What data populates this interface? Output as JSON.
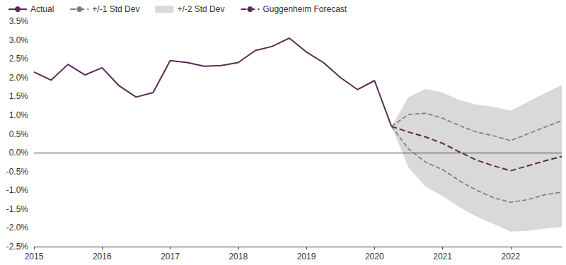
{
  "chart_data": {
    "type": "line",
    "x": [
      2015,
      2015.25,
      2015.5,
      2015.75,
      2016,
      2016.25,
      2016.5,
      2016.75,
      2017,
      2017.25,
      2017.5,
      2017.75,
      2018,
      2018.25,
      2018.5,
      2018.75,
      2019,
      2019.25,
      2019.5,
      2019.75,
      2020,
      2020.25,
      2020.5,
      2020.75,
      2021,
      2021.25,
      2021.5,
      2021.75,
      2022,
      2022.25,
      2022.5,
      2022.75
    ],
    "xlim": [
      2015,
      2022.75
    ],
    "xticks": [
      2015,
      2016,
      2017,
      2018,
      2019,
      2020,
      2021,
      2022
    ],
    "ylim": [
      -2.5,
      3.5
    ],
    "yticks": [
      {
        "value": -2.5,
        "label": "-2.5%"
      },
      {
        "value": -2.0,
        "label": "-2.0%"
      },
      {
        "value": -1.5,
        "label": "-1.5%"
      },
      {
        "value": -1.0,
        "label": "-1.0%"
      },
      {
        "value": -0.5,
        "label": "-0.5%"
      },
      {
        "value": 0,
        "label": "0.0%"
      },
      {
        "value": 0.5,
        "label": "0.5%"
      },
      {
        "value": 1.0,
        "label": "1.0%"
      },
      {
        "value": 1.5,
        "label": "1.5%"
      },
      {
        "value": 2.0,
        "label": "2.0%"
      },
      {
        "value": 2.5,
        "label": "2.5%"
      },
      {
        "value": 3.0,
        "label": "3.0%"
      },
      {
        "value": 3.5,
        "label": "3.5%"
      }
    ],
    "grid": false,
    "legend": "top-left",
    "series": [
      {
        "name": "Actual",
        "type": "line",
        "color": "#5a2a55",
        "line_style": "solid",
        "values": [
          2.15,
          1.93,
          2.35,
          2.07,
          2.26,
          1.78,
          1.48,
          1.6,
          2.45,
          2.4,
          2.3,
          2.32,
          2.4,
          2.72,
          2.83,
          3.05,
          2.68,
          2.4,
          2.0,
          1.68,
          1.92,
          0.7,
          null,
          null,
          null,
          null,
          null,
          null,
          null,
          null,
          null,
          null
        ]
      },
      {
        "name": "+/-1 Std Dev",
        "type": "line",
        "color": "#7a7a7a",
        "line_style": "dashed",
        "upper": [
          null,
          null,
          null,
          null,
          null,
          null,
          null,
          null,
          null,
          null,
          null,
          null,
          null,
          null,
          null,
          null,
          null,
          null,
          null,
          null,
          null,
          0.7,
          1.02,
          1.05,
          0.92,
          0.72,
          0.55,
          0.45,
          0.32,
          0.5,
          0.68,
          0.85
        ],
        "lower": [
          null,
          null,
          null,
          null,
          null,
          null,
          null,
          null,
          null,
          null,
          null,
          null,
          null,
          null,
          null,
          null,
          null,
          null,
          null,
          null,
          null,
          0.7,
          0.1,
          -0.25,
          -0.45,
          -0.75,
          -1.0,
          -1.2,
          -1.32,
          -1.25,
          -1.12,
          -1.05
        ]
      },
      {
        "name": "+/-2 Std Dev",
        "type": "band",
        "color": "#d9d9d9",
        "upper": [
          null,
          null,
          null,
          null,
          null,
          null,
          null,
          null,
          null,
          null,
          null,
          null,
          null,
          null,
          null,
          null,
          null,
          null,
          null,
          null,
          null,
          0.7,
          1.48,
          1.7,
          1.6,
          1.4,
          1.28,
          1.22,
          1.12,
          1.35,
          1.58,
          1.8
        ],
        "lower": [
          null,
          null,
          null,
          null,
          null,
          null,
          null,
          null,
          null,
          null,
          null,
          null,
          null,
          null,
          null,
          null,
          null,
          null,
          null,
          null,
          null,
          0.7,
          -0.4,
          -0.9,
          -1.15,
          -1.45,
          -1.7,
          -1.9,
          -2.1,
          -2.08,
          -2.02,
          -1.98
        ]
      },
      {
        "name": "Guggenheim Forecast",
        "type": "line",
        "color": "#5a2a55",
        "line_style": "dashed",
        "values": [
          null,
          null,
          null,
          null,
          null,
          null,
          null,
          null,
          null,
          null,
          null,
          null,
          null,
          null,
          null,
          null,
          null,
          null,
          null,
          null,
          null,
          0.7,
          0.55,
          0.42,
          0.25,
          0.02,
          -0.2,
          -0.35,
          -0.48,
          -0.35,
          -0.22,
          -0.1
        ]
      }
    ]
  }
}
